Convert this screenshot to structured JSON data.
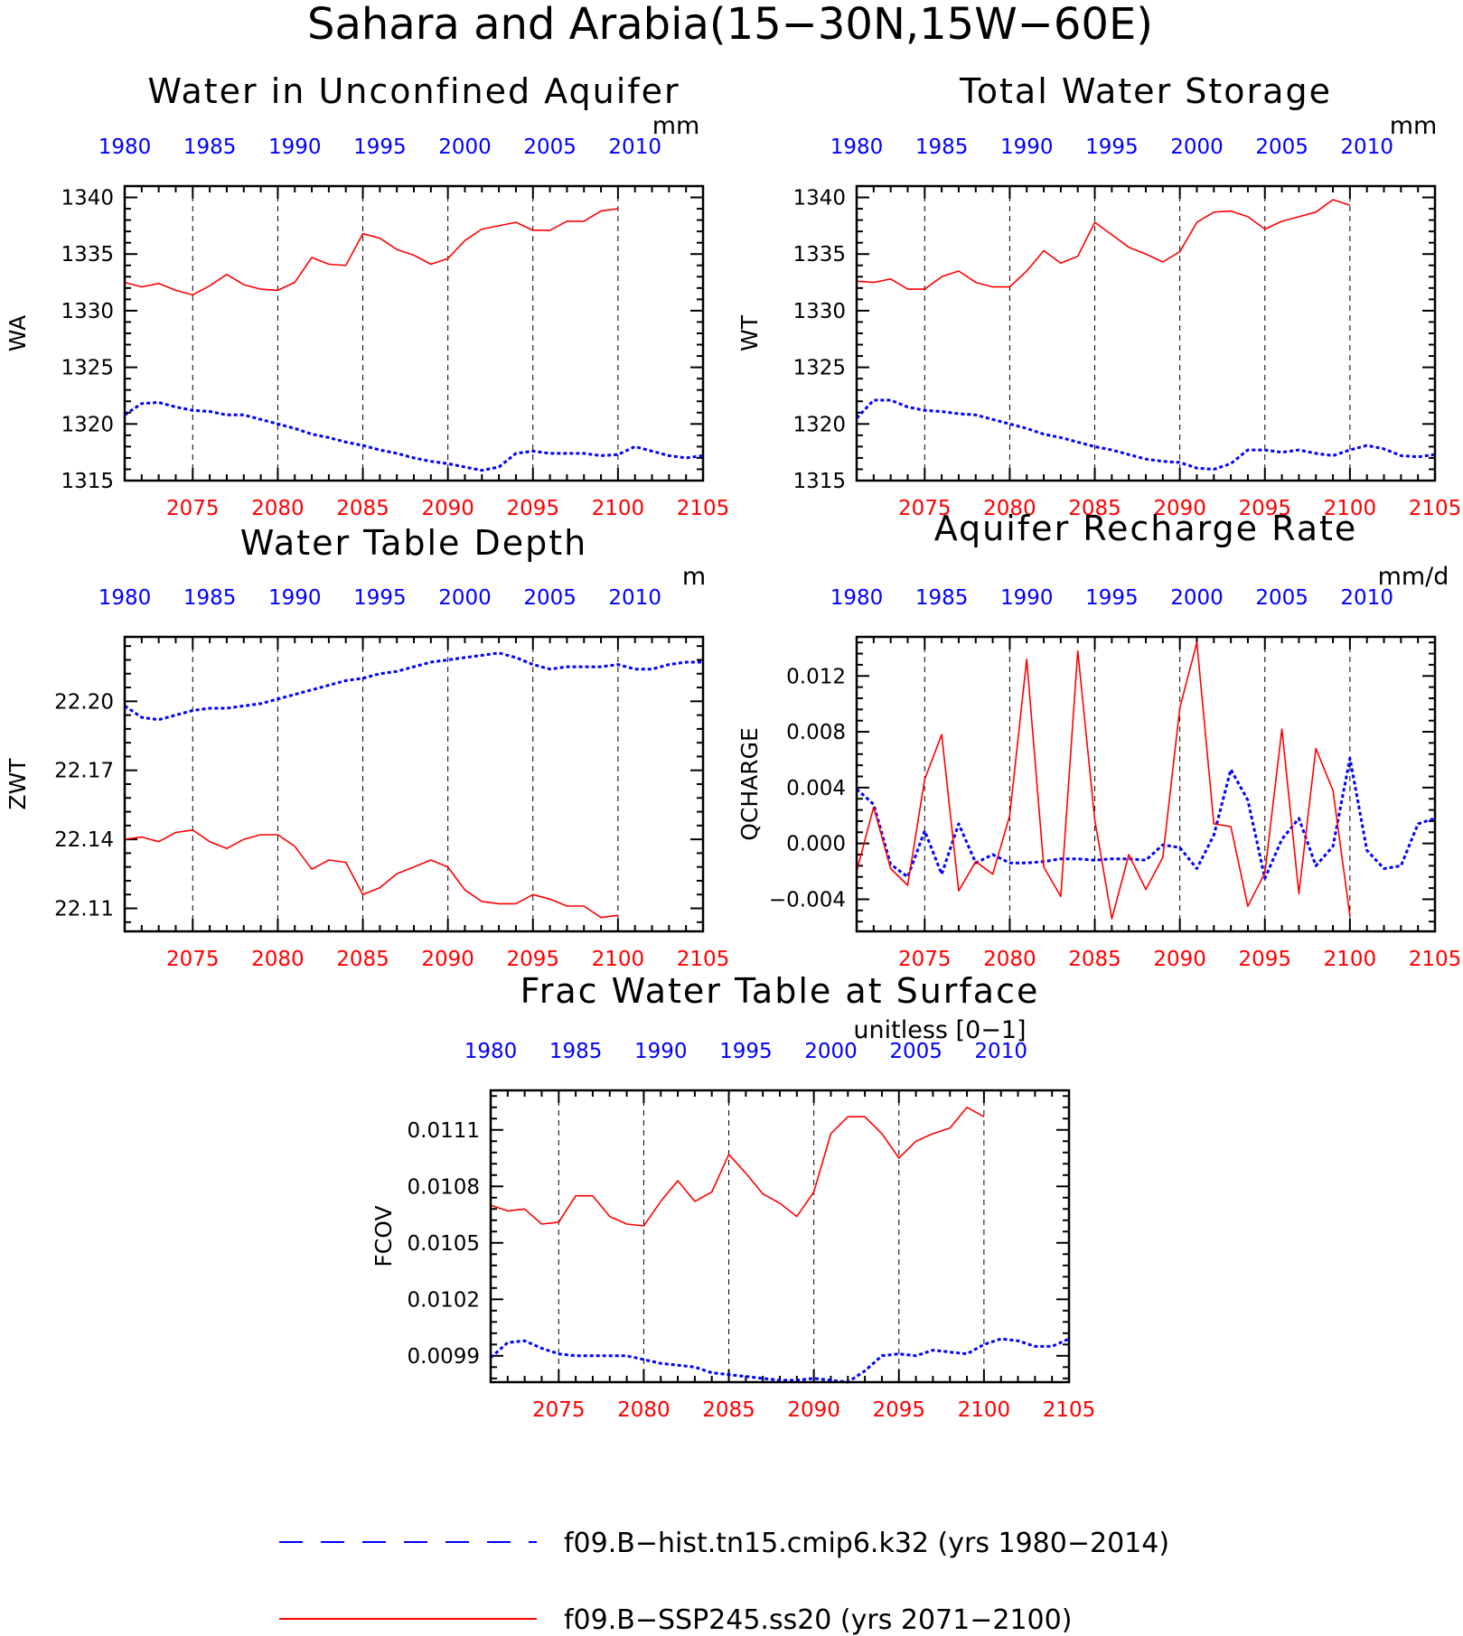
{
  "figure": {
    "title": "Sahara and Arabia(15−30N,15W−60E)"
  },
  "legend": {
    "placement": "bottom",
    "entries": [
      {
        "label": "f09.B−hist.tn15.cmip6.k32 (yrs 1980−2014)",
        "color": "#0000ff",
        "style": "dashed"
      },
      {
        "label": "f09.B−SSP245.ss20 (yrs 2071−2100)",
        "color": "#ff0000",
        "style": "solid"
      }
    ]
  },
  "colors": {
    "hist": "#0000ff",
    "ssp": "#ff0000",
    "axis": "#000000"
  },
  "chart_data": [
    {
      "type": "line",
      "title": "Water in Unconfined Aquifer",
      "ylabel": "WA",
      "units": "mm",
      "ylim": [
        1315,
        1341
      ],
      "yticks": [
        1315,
        1320,
        1325,
        1330,
        1335,
        1340
      ],
      "ytick_labels": [
        "1315",
        "1320",
        "1325",
        "1330",
        "1335",
        "1340"
      ],
      "x_bottom": {
        "range": [
          2071,
          2105
        ],
        "ticks": [
          2075,
          2080,
          2085,
          2090,
          2095,
          2100,
          2105
        ]
      },
      "x_top": {
        "range": [
          1980,
          2014
        ],
        "ticks": [
          1980,
          1985,
          1990,
          1995,
          2000,
          2005,
          2010
        ]
      },
      "grid": "dashed vertical lines at major ticks",
      "series": [
        {
          "name": "f09.B−hist.tn15.cmip6.k32 (yrs 1980−2014)",
          "axis": "top",
          "x_start": 1980,
          "values": [
            1320.8,
            1321.8,
            1321.9,
            1321.5,
            1321.2,
            1321.1,
            1320.8,
            1320.8,
            1320.4,
            1320.0,
            1319.6,
            1319.1,
            1318.8,
            1318.4,
            1318.1,
            1317.7,
            1317.4,
            1317.0,
            1316.7,
            1316.5,
            1316.2,
            1315.9,
            1316.2,
            1317.4,
            1317.6,
            1317.4,
            1317.4,
            1317.4,
            1317.2,
            1317.3,
            1318.0,
            1317.6,
            1317.2,
            1317.0,
            1317.2
          ]
        },
        {
          "name": "f09.B−SSP245.ss20 (yrs 2071−2100)",
          "axis": "bottom",
          "x_start": 2071,
          "values": [
            1332.5,
            1332.1,
            1332.4,
            1331.8,
            1331.4,
            1332.2,
            1333.2,
            1332.3,
            1331.9,
            1331.8,
            1332.5,
            1334.7,
            1334.1,
            1334.0,
            1336.8,
            1336.4,
            1335.4,
            1334.9,
            1334.1,
            1334.6,
            1336.2,
            1337.2,
            1337.5,
            1337.8,
            1337.1,
            1337.1,
            1337.9,
            1337.9,
            1338.8,
            1339.0
          ]
        }
      ]
    },
    {
      "type": "line",
      "title": "Total Water Storage",
      "ylabel": "WT",
      "units": "mm",
      "ylim": [
        1315,
        1341
      ],
      "yticks": [
        1315,
        1320,
        1325,
        1330,
        1335,
        1340
      ],
      "ytick_labels": [
        "1315",
        "1320",
        "1325",
        "1330",
        "1335",
        "1340"
      ],
      "x_bottom": {
        "range": [
          2071,
          2105
        ],
        "ticks": [
          2075,
          2080,
          2085,
          2090,
          2095,
          2100,
          2105
        ]
      },
      "x_top": {
        "range": [
          1980,
          2014
        ],
        "ticks": [
          1980,
          1985,
          1990,
          1995,
          2000,
          2005,
          2010
        ]
      },
      "grid": "dashed vertical lines at major ticks",
      "series": [
        {
          "name": "f09.B−hist.tn15.cmip6.k32 (yrs 1980−2014)",
          "axis": "top",
          "x_start": 1980,
          "values": [
            1320.5,
            1322.1,
            1322.1,
            1321.5,
            1321.2,
            1321.1,
            1320.9,
            1320.8,
            1320.4,
            1320.0,
            1319.6,
            1319.1,
            1318.8,
            1318.4,
            1318.0,
            1317.7,
            1317.3,
            1316.9,
            1316.7,
            1316.6,
            1316.1,
            1316.0,
            1316.5,
            1317.7,
            1317.7,
            1317.5,
            1317.7,
            1317.4,
            1317.2,
            1317.7,
            1318.1,
            1317.8,
            1317.2,
            1317.1,
            1317.3
          ]
        },
        {
          "name": "f09.B−SSP245.ss20 (yrs 2071−2100)",
          "axis": "bottom",
          "x_start": 2071,
          "values": [
            1332.6,
            1332.5,
            1332.8,
            1331.9,
            1331.9,
            1333.0,
            1333.5,
            1332.5,
            1332.1,
            1332.1,
            1333.5,
            1335.3,
            1334.2,
            1334.8,
            1337.8,
            1336.7,
            1335.6,
            1335.0,
            1334.3,
            1335.2,
            1337.8,
            1338.7,
            1338.8,
            1338.3,
            1337.2,
            1337.9,
            1338.3,
            1338.7,
            1339.8,
            1339.3
          ]
        }
      ]
    },
    {
      "type": "line",
      "title": "Water Table Depth",
      "ylabel": "ZWT",
      "units": "m",
      "ylim": [
        22.1,
        22.228
      ],
      "yticks": [
        22.11,
        22.14,
        22.17,
        22.2
      ],
      "ytick_labels": [
        "22.11",
        "22.14",
        "22.17",
        "22.20"
      ],
      "x_bottom": {
        "range": [
          2071,
          2105
        ],
        "ticks": [
          2075,
          2080,
          2085,
          2090,
          2095,
          2100,
          2105
        ]
      },
      "x_top": {
        "range": [
          1980,
          2014
        ],
        "ticks": [
          1980,
          1985,
          1990,
          1995,
          2000,
          2005,
          2010
        ]
      },
      "grid": "dashed vertical lines at major ticks",
      "series": [
        {
          "name": "f09.B−hist.tn15.cmip6.k32 (yrs 1980−2014)",
          "axis": "top",
          "x_start": 1980,
          "values": [
            22.198,
            22.193,
            22.192,
            22.194,
            22.196,
            22.197,
            22.197,
            22.198,
            22.199,
            22.201,
            22.203,
            22.205,
            22.207,
            22.209,
            22.21,
            22.212,
            22.213,
            22.215,
            22.217,
            22.218,
            22.219,
            22.22,
            22.221,
            22.219,
            22.216,
            22.214,
            22.215,
            22.215,
            22.215,
            22.216,
            22.214,
            22.214,
            22.216,
            22.217,
            22.217
          ]
        },
        {
          "name": "f09.B−SSP245.ss20 (yrs 2071−2100)",
          "axis": "bottom",
          "x_start": 2071,
          "values": [
            22.14,
            22.141,
            22.139,
            22.143,
            22.144,
            22.139,
            22.136,
            22.14,
            22.142,
            22.142,
            22.137,
            22.127,
            22.131,
            22.13,
            22.116,
            22.119,
            22.125,
            22.128,
            22.131,
            22.128,
            22.118,
            22.113,
            22.112,
            22.112,
            22.116,
            22.114,
            22.111,
            22.111,
            22.106,
            22.107
          ]
        }
      ]
    },
    {
      "type": "line",
      "title": "Aquifer Recharge Rate",
      "ylabel": "QCHARGE",
      "units": "mm/d",
      "ylim": [
        -0.0063,
        0.0148
      ],
      "yticks": [
        -0.004,
        0.0,
        0.004,
        0.008,
        0.012
      ],
      "ytick_labels": [
        "−0.004",
        "0.000",
        "0.004",
        "0.008",
        "0.012"
      ],
      "x_bottom": {
        "range": [
          2071,
          2105
        ],
        "ticks": [
          2075,
          2080,
          2085,
          2090,
          2095,
          2100,
          2105
        ]
      },
      "x_top": {
        "range": [
          1980,
          2014
        ],
        "ticks": [
          1980,
          1985,
          1990,
          1995,
          2000,
          2005,
          2010
        ]
      },
      "grid": "dashed vertical lines at major ticks",
      "series": [
        {
          "name": "f09.B−hist.tn15.cmip6.k32 (yrs 1980−2014)",
          "axis": "top",
          "x_start": 1980,
          "values": [
            0.0039,
            0.0028,
            -0.0015,
            -0.0024,
            0.0009,
            -0.0022,
            0.0014,
            -0.0014,
            -0.0008,
            -0.0014,
            -0.0014,
            -0.0013,
            -0.0011,
            -0.0011,
            -0.0012,
            -0.0011,
            -0.0011,
            -0.0012,
            -0.0001,
            -0.0003,
            -0.0018,
            0.0006,
            0.0053,
            0.0031,
            -0.0025,
            0.0003,
            0.0018,
            -0.0016,
            -0.0002,
            0.0061,
            -0.0005,
            -0.0018,
            -0.0016,
            0.0014,
            0.0018
          ]
        },
        {
          "name": "f09.B−SSP245.ss20 (yrs 2071−2100)",
          "axis": "bottom",
          "x_start": 2071,
          "values": [
            -0.002,
            0.0026,
            -0.0018,
            -0.003,
            0.0046,
            0.0078,
            -0.0034,
            -0.0013,
            -0.0022,
            0.002,
            0.0132,
            -0.0017,
            -0.0038,
            0.0138,
            0.0017,
            -0.0054,
            -0.0008,
            -0.0033,
            -0.001,
            0.0097,
            0.0144,
            0.0014,
            0.0012,
            -0.0045,
            -0.0021,
            0.0082,
            -0.0036,
            0.0068,
            0.0038,
            -0.0052
          ]
        }
      ]
    },
    {
      "type": "line",
      "title": "Frac Water Table at Surface",
      "ylabel": "FCOV",
      "units": "unitless [0−1]",
      "ylim": [
        0.00976,
        0.01131
      ],
      "yticks": [
        0.0099,
        0.0102,
        0.0105,
        0.0108,
        0.0111
      ],
      "ytick_labels": [
        "0.0099",
        "0.0102",
        "0.0105",
        "0.0108",
        "0.0111"
      ],
      "x_bottom": {
        "range": [
          2071,
          2105
        ],
        "ticks": [
          2075,
          2080,
          2085,
          2090,
          2095,
          2100,
          2105
        ]
      },
      "x_top": {
        "range": [
          1980,
          2014
        ],
        "ticks": [
          1980,
          1985,
          1990,
          1995,
          2000,
          2005,
          2010
        ]
      },
      "grid": "dashed vertical lines at major ticks",
      "series": [
        {
          "name": "f09.B−hist.tn15.cmip6.k32 (yrs 1980−2014)",
          "axis": "top",
          "x_start": 1980,
          "values": [
            0.00989,
            0.00997,
            0.00998,
            0.00994,
            0.00991,
            0.0099,
            0.0099,
            0.0099,
            0.0099,
            0.00988,
            0.00986,
            0.00985,
            0.00984,
            0.00981,
            0.0098,
            0.00979,
            0.00978,
            0.00977,
            0.00977,
            0.00978,
            0.00977,
            0.00976,
            0.00982,
            0.0099,
            0.00991,
            0.0099,
            0.00993,
            0.00992,
            0.00991,
            0.00996,
            0.00999,
            0.00998,
            0.00995,
            0.00995,
            0.00999
          ]
        },
        {
          "name": "f09.B−SSP245.ss20 (yrs 2071−2100)",
          "axis": "bottom",
          "x_start": 2071,
          "values": [
            0.0107,
            0.01067,
            0.01068,
            0.0106,
            0.01061,
            0.01075,
            0.01075,
            0.01064,
            0.0106,
            0.01059,
            0.01072,
            0.01083,
            0.01072,
            0.01077,
            0.01097,
            0.01087,
            0.01076,
            0.01071,
            0.01064,
            0.01077,
            0.01108,
            0.01117,
            0.01117,
            0.01108,
            0.01095,
            0.01104,
            0.01108,
            0.01111,
            0.01122,
            0.01117
          ]
        }
      ]
    }
  ]
}
